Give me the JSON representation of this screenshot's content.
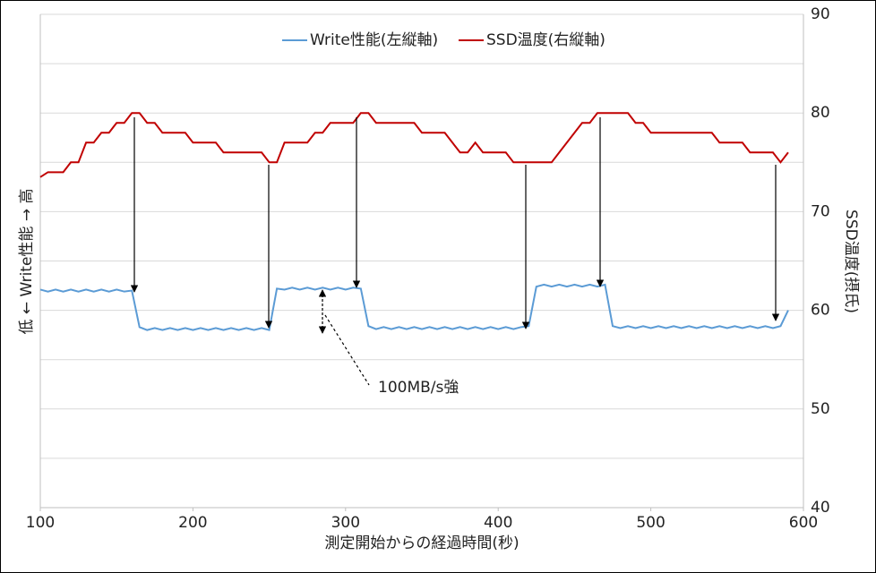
{
  "chart_data": {
    "type": "line",
    "legend": "top",
    "xlabel": "測定開始からの経過時間(秒)",
    "ylabel": "低 ← Write性能 → 高",
    "y2label": "SSD温度(摂氏)",
    "annotation": "100MB/s強",
    "xlim": [
      100,
      600
    ],
    "xticks": [
      100,
      200,
      300,
      400,
      500,
      600
    ],
    "ylim": [
      40,
      90
    ],
    "y2lim": [
      40,
      90
    ],
    "y2ticks": [
      40,
      50,
      60,
      70,
      80,
      90
    ],
    "minor_y2ticks": [
      45,
      55,
      65,
      75,
      85
    ],
    "grid": true,
    "x": [
      100,
      105,
      110,
      115,
      120,
      125,
      130,
      135,
      140,
      145,
      150,
      155,
      160,
      165,
      170,
      175,
      180,
      185,
      190,
      195,
      200,
      205,
      210,
      215,
      220,
      225,
      230,
      235,
      240,
      245,
      250,
      255,
      260,
      265,
      270,
      275,
      280,
      285,
      290,
      295,
      300,
      305,
      310,
      315,
      320,
      325,
      330,
      335,
      340,
      345,
      350,
      355,
      360,
      365,
      370,
      375,
      380,
      385,
      390,
      395,
      400,
      405,
      410,
      415,
      420,
      425,
      430,
      435,
      440,
      445,
      450,
      455,
      460,
      465,
      470,
      475,
      480,
      485,
      490,
      495,
      500,
      505,
      510,
      515,
      520,
      525,
      530,
      535,
      540,
      545,
      550,
      555,
      560,
      565,
      570,
      575,
      580,
      585,
      590
    ],
    "series": [
      {
        "name": "Write性能(左縦軸)",
        "color": "#5b9bd5",
        "axis": "y",
        "values": [
          62.1,
          61.9,
          62.1,
          61.9,
          62.1,
          61.9,
          62.1,
          61.9,
          62.1,
          61.9,
          62.1,
          61.9,
          62.0,
          58.3,
          58.0,
          58.2,
          58.0,
          58.2,
          58.0,
          58.2,
          58.0,
          58.2,
          58.0,
          58.2,
          58.0,
          58.2,
          58.0,
          58.2,
          58.0,
          58.2,
          58.0,
          62.2,
          62.1,
          62.3,
          62.1,
          62.3,
          62.1,
          62.3,
          62.1,
          62.3,
          62.1,
          62.3,
          62.2,
          58.4,
          58.1,
          58.3,
          58.1,
          58.3,
          58.1,
          58.3,
          58.1,
          58.3,
          58.1,
          58.3,
          58.1,
          58.3,
          58.1,
          58.3,
          58.1,
          58.3,
          58.1,
          58.3,
          58.1,
          58.3,
          58.4,
          62.4,
          62.6,
          62.4,
          62.6,
          62.4,
          62.6,
          62.4,
          62.6,
          62.4,
          62.6,
          58.4,
          58.2,
          58.4,
          58.2,
          58.4,
          58.2,
          58.4,
          58.2,
          58.4,
          58.2,
          58.4,
          58.2,
          58.4,
          58.2,
          58.4,
          58.2,
          58.4,
          58.2,
          58.4,
          58.2,
          58.4,
          58.2,
          58.4,
          60.0
        ]
      },
      {
        "name": "SSD温度(右縦軸)",
        "color": "#c00000",
        "axis": "y2",
        "values": [
          73.5,
          74,
          74,
          74,
          75,
          75,
          77,
          77,
          78,
          78,
          79,
          79,
          80,
          80,
          79,
          79,
          78,
          78,
          78,
          78,
          77,
          77,
          77,
          77,
          76,
          76,
          76,
          76,
          76,
          76,
          75,
          75,
          77,
          77,
          77,
          77,
          78,
          78,
          79,
          79,
          79,
          79,
          80,
          80,
          79,
          79,
          79,
          79,
          79,
          79,
          78,
          78,
          78,
          78,
          77,
          76,
          76,
          77,
          76,
          76,
          76,
          76,
          75,
          75,
          75,
          75,
          75,
          75,
          76,
          77,
          78,
          79,
          79,
          80,
          80,
          80,
          80,
          80,
          79,
          79,
          78,
          78,
          78,
          78,
          78,
          78,
          78,
          78,
          78,
          77,
          77,
          77,
          77,
          76,
          76,
          76,
          76,
          75,
          76
        ]
      }
    ]
  }
}
